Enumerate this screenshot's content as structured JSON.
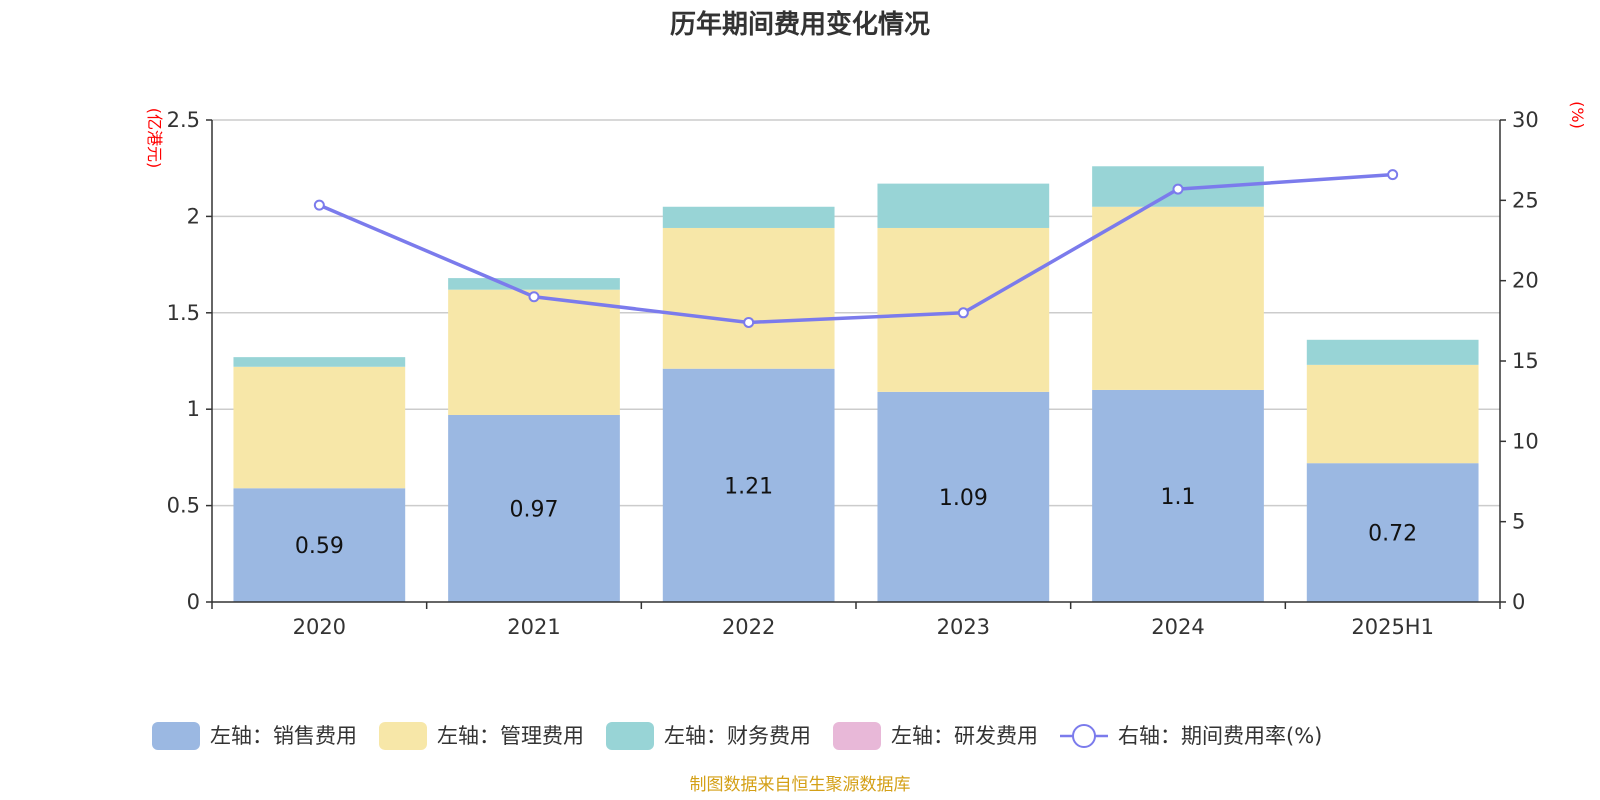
{
  "chart_data": {
    "type": "bar",
    "title": "历年期间费用变化情况",
    "categories": [
      "2020",
      "2021",
      "2022",
      "2023",
      "2024",
      "2025H1"
    ],
    "left_axis": {
      "unit": "(亿港元)",
      "ylim": [
        0,
        2.5
      ],
      "ticks": [
        "0",
        "0.5",
        "1",
        "1.5",
        "2",
        "2.5"
      ]
    },
    "right_axis": {
      "unit": "(%)",
      "ylim": [
        0,
        30
      ],
      "ticks": [
        "0",
        "5",
        "10",
        "15",
        "20",
        "25",
        "30"
      ]
    },
    "series": [
      {
        "name": "左轴：销售费用",
        "type": "bar",
        "axis": "left",
        "color": "#9bb8e2",
        "values": [
          0.59,
          0.97,
          1.21,
          1.09,
          1.1,
          0.72
        ],
        "labels": [
          "0.59",
          "0.97",
          "1.21",
          "1.09",
          "1.1",
          "0.72"
        ]
      },
      {
        "name": "左轴：管理费用",
        "type": "bar",
        "axis": "left",
        "color": "#f7e7a8",
        "values": [
          0.63,
          0.65,
          0.73,
          0.85,
          0.95,
          0.51
        ]
      },
      {
        "name": "左轴：财务费用",
        "type": "bar",
        "axis": "left",
        "color": "#98d4d6",
        "values": [
          0.05,
          0.06,
          0.11,
          0.23,
          0.21,
          0.13
        ]
      },
      {
        "name": "左轴：研发费用",
        "type": "bar",
        "axis": "left",
        "color": "#e8b8d8",
        "values": [
          0,
          0,
          0,
          0,
          0,
          0
        ]
      },
      {
        "name": "右轴：期间费用率(%)",
        "type": "line",
        "axis": "right",
        "color": "#7b7bec",
        "values": [
          24.7,
          19.0,
          17.4,
          18.0,
          25.7,
          26.6
        ]
      }
    ],
    "grid": true,
    "legend_position": "bottom"
  },
  "footer": {
    "source": "制图数据来自恒生聚源数据库"
  }
}
